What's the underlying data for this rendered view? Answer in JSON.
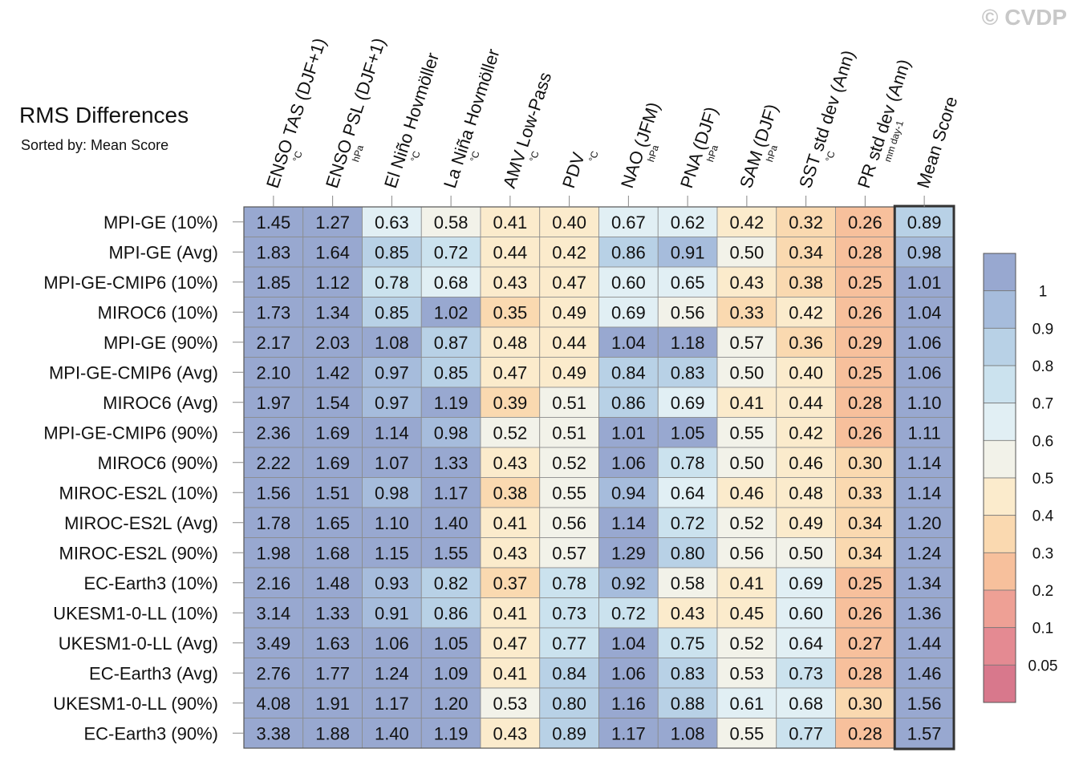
{
  "title": "RMS Differences",
  "subtitle": "Sorted by: Mean Score",
  "watermark": "© CVDP",
  "columns": [
    {
      "label": "ENSO TAS (DJF+1)",
      "unit": "°C"
    },
    {
      "label": "ENSO PSL (DJF+1)",
      "unit": "hPa"
    },
    {
      "label": "El Niño Hovmöller",
      "unit": "°C"
    },
    {
      "label": "La Niña Hovmöller",
      "unit": "°C"
    },
    {
      "label": "AMV Low-Pass",
      "unit": "°C"
    },
    {
      "label": "PDV",
      "unit": "°C"
    },
    {
      "label": "NAO (JFM)",
      "unit": "hPa"
    },
    {
      "label": "PNA (DJF)",
      "unit": "hPa"
    },
    {
      "label": "SAM (DJF)",
      "unit": "hPa"
    },
    {
      "label": "SST std dev (Ann)",
      "unit": "°C"
    },
    {
      "label": "PR std dev (Ann)",
      "unit": "mm day-1"
    },
    {
      "label": "Mean Score",
      "unit": ""
    }
  ],
  "chart_data": {
    "type": "heatmap",
    "rows": [
      "MPI-GE (10%)",
      "MPI-GE (Avg)",
      "MPI-GE-CMIP6 (10%)",
      "MIROC6 (10%)",
      "MPI-GE (90%)",
      "MPI-GE-CMIP6 (Avg)",
      "MIROC6 (Avg)",
      "MPI-GE-CMIP6 (90%)",
      "MIROC6 (90%)",
      "MIROC-ES2L (10%)",
      "MIROC-ES2L (Avg)",
      "MIROC-ES2L (90%)",
      "EC-Earth3 (10%)",
      "UKESM1-0-LL (10%)",
      "UKESM1-0-LL (Avg)",
      "EC-Earth3 (Avg)",
      "UKESM1-0-LL (90%)",
      "EC-Earth3 (90%)"
    ],
    "values": [
      [
        "1.45",
        "1.27",
        "0.63",
        "0.58",
        "0.41",
        "0.40",
        "0.67",
        "0.62",
        "0.42",
        "0.32",
        "0.26",
        "0.89"
      ],
      [
        "1.83",
        "1.64",
        "0.85",
        "0.72",
        "0.44",
        "0.42",
        "0.86",
        "0.91",
        "0.50",
        "0.34",
        "0.28",
        "0.98"
      ],
      [
        "1.85",
        "1.12",
        "0.78",
        "0.68",
        "0.43",
        "0.47",
        "0.60",
        "0.65",
        "0.43",
        "0.38",
        "0.25",
        "1.01"
      ],
      [
        "1.73",
        "1.34",
        "0.85",
        "1.02",
        "0.35",
        "0.49",
        "0.69",
        "0.56",
        "0.33",
        "0.42",
        "0.26",
        "1.04"
      ],
      [
        "2.17",
        "2.03",
        "1.08",
        "0.87",
        "0.48",
        "0.44",
        "1.04",
        "1.18",
        "0.57",
        "0.36",
        "0.29",
        "1.06"
      ],
      [
        "2.10",
        "1.42",
        "0.97",
        "0.85",
        "0.47",
        "0.49",
        "0.84",
        "0.83",
        "0.50",
        "0.40",
        "0.25",
        "1.06"
      ],
      [
        "1.97",
        "1.54",
        "0.97",
        "1.19",
        "0.39",
        "0.51",
        "0.86",
        "0.69",
        "0.41",
        "0.44",
        "0.28",
        "1.10"
      ],
      [
        "2.36",
        "1.69",
        "1.14",
        "0.98",
        "0.52",
        "0.51",
        "1.01",
        "1.05",
        "0.55",
        "0.42",
        "0.26",
        "1.11"
      ],
      [
        "2.22",
        "1.69",
        "1.07",
        "1.33",
        "0.43",
        "0.52",
        "1.06",
        "0.78",
        "0.50",
        "0.46",
        "0.30",
        "1.14"
      ],
      [
        "1.56",
        "1.51",
        "0.98",
        "1.17",
        "0.38",
        "0.55",
        "0.94",
        "0.64",
        "0.46",
        "0.48",
        "0.33",
        "1.14"
      ],
      [
        "1.78",
        "1.65",
        "1.10",
        "1.40",
        "0.41",
        "0.56",
        "1.14",
        "0.72",
        "0.52",
        "0.49",
        "0.34",
        "1.20"
      ],
      [
        "1.98",
        "1.68",
        "1.15",
        "1.55",
        "0.43",
        "0.57",
        "1.29",
        "0.80",
        "0.56",
        "0.50",
        "0.34",
        "1.24"
      ],
      [
        "2.16",
        "1.48",
        "0.93",
        "0.82",
        "0.37",
        "0.78",
        "0.92",
        "0.58",
        "0.41",
        "0.69",
        "0.25",
        "1.34"
      ],
      [
        "3.14",
        "1.33",
        "0.91",
        "0.86",
        "0.41",
        "0.73",
        "0.72",
        "0.43",
        "0.45",
        "0.60",
        "0.26",
        "1.36"
      ],
      [
        "3.49",
        "1.63",
        "1.06",
        "1.05",
        "0.47",
        "0.77",
        "1.04",
        "0.75",
        "0.52",
        "0.64",
        "0.27",
        "1.44"
      ],
      [
        "2.76",
        "1.77",
        "1.24",
        "1.09",
        "0.41",
        "0.84",
        "1.06",
        "0.83",
        "0.53",
        "0.73",
        "0.28",
        "1.46"
      ],
      [
        "4.08",
        "1.91",
        "1.17",
        "1.20",
        "0.53",
        "0.80",
        "1.16",
        "0.88",
        "0.61",
        "0.68",
        "0.30",
        "1.56"
      ],
      [
        "3.38",
        "1.88",
        "1.40",
        "1.19",
        "0.43",
        "0.89",
        "1.17",
        "1.08",
        "0.55",
        "0.77",
        "0.28",
        "1.57"
      ]
    ],
    "colorbar": {
      "labels": [
        "1",
        "0.9",
        "0.8",
        "0.7",
        "0.6",
        "0.5",
        "0.4",
        "0.3",
        "0.2",
        "0.1",
        "0.05"
      ],
      "bins": [
        {
          "min": 1.0,
          "color": "#98a8d0"
        },
        {
          "min": 0.9,
          "color": "#a6bcdc"
        },
        {
          "min": 0.8,
          "color": "#b8d1e6"
        },
        {
          "min": 0.7,
          "color": "#cbe2ee"
        },
        {
          "min": 0.6,
          "color": "#e1eff4"
        },
        {
          "min": 0.5,
          "color": "#f2f2e9"
        },
        {
          "min": 0.4,
          "color": "#fbebcc"
        },
        {
          "min": 0.3,
          "color": "#fad9b0"
        },
        {
          "min": 0.2,
          "color": "#f7c09c"
        },
        {
          "min": 0.1,
          "color": "#eea095"
        },
        {
          "min": 0.05,
          "color": "#e48a92"
        },
        {
          "min": 0.0,
          "color": "#d8788c"
        }
      ]
    }
  }
}
